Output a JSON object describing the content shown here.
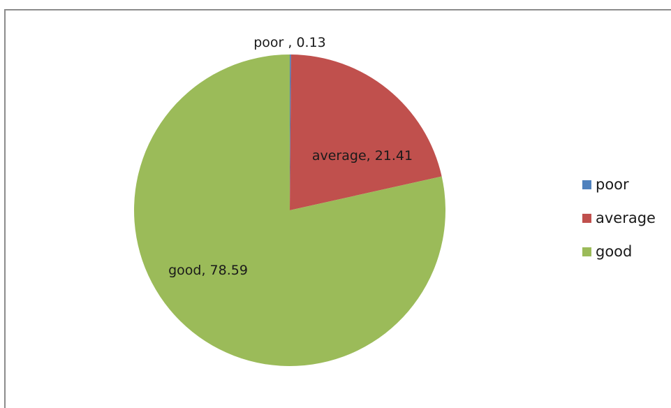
{
  "chart_data": {
    "type": "pie",
    "categories": [
      "poor",
      "average",
      "good"
    ],
    "values": [
      0.13,
      21.41,
      78.59
    ],
    "colors": [
      "#4f81bd",
      "#c0504d",
      "#9bbb59"
    ],
    "data_labels": [
      "poor , 0.13",
      "average, 21.41",
      "good, 78.59"
    ],
    "legend": "right",
    "start_angle": "12 o'clock, clockwise"
  }
}
